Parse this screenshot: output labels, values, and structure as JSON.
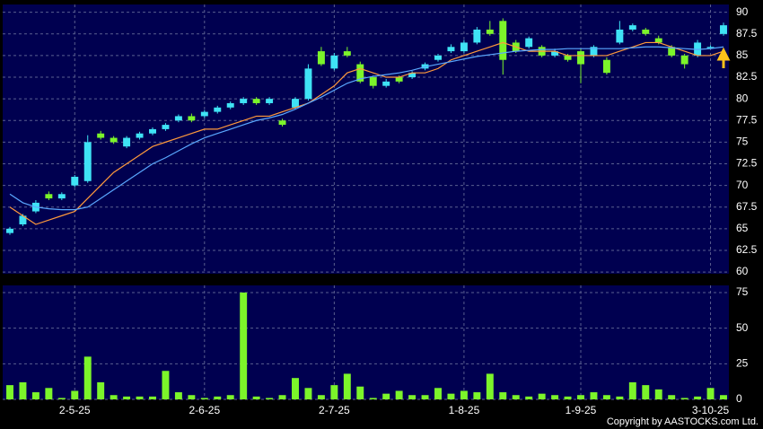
{
  "chart_data": [
    {
      "type": "candlestick",
      "categories": [
        null,
        null,
        null,
        null,
        null,
        "2-5-25",
        null,
        null,
        null,
        null,
        null,
        null,
        null,
        null,
        null,
        "2-6-25",
        null,
        null,
        null,
        null,
        null,
        null,
        null,
        null,
        null,
        "2-7-25",
        null,
        null,
        null,
        null,
        null,
        null,
        null,
        null,
        null,
        "1-8-25",
        null,
        null,
        null,
        null,
        null,
        null,
        null,
        null,
        "1-9-25",
        null,
        null,
        null,
        null,
        null,
        null,
        null,
        null,
        null,
        "3-10-25",
        null
      ],
      "open": [
        64.5,
        65.5,
        67,
        69,
        68.5,
        70,
        70.5,
        76,
        75.5,
        74.5,
        75.5,
        76,
        76.5,
        77.5,
        78,
        78,
        78.5,
        79,
        79.5,
        80,
        79.5,
        77.5,
        79,
        80,
        85.5,
        83.5,
        85.5,
        84,
        82.5,
        81.5,
        82.5,
        82.5,
        83.5,
        84.5,
        85.5,
        85.5,
        86.5,
        88,
        89,
        86.5,
        86,
        86,
        85,
        85,
        85.5,
        85,
        84.5,
        86.5,
        88,
        88,
        87,
        86,
        85,
        85,
        86,
        87.5
      ],
      "high": [
        65.2,
        66.7,
        68.3,
        69.3,
        69.2,
        71.2,
        75.8,
        76.3,
        75.7,
        75.7,
        76.2,
        76.7,
        77.2,
        78.2,
        78.3,
        78.7,
        79.2,
        79.7,
        80.2,
        80.2,
        80.2,
        77.7,
        80.2,
        84,
        86,
        85.3,
        86,
        84.3,
        82.7,
        82.3,
        82.7,
        83.2,
        84.2,
        85.2,
        86.3,
        86.8,
        88.3,
        89,
        89.3,
        86.8,
        87.2,
        86.2,
        85.8,
        85.2,
        85.8,
        86.2,
        84.8,
        89,
        88.7,
        88.2,
        87.3,
        86.2,
        85.2,
        86.8,
        86.2,
        88.8
      ],
      "low": [
        64.3,
        65.3,
        66.8,
        68.3,
        68.3,
        69.8,
        70.3,
        75.3,
        74.8,
        74.3,
        75.3,
        75.8,
        76.3,
        77.3,
        77.3,
        77.8,
        78.3,
        78.8,
        79.3,
        79.3,
        79.3,
        76.8,
        78.8,
        79.8,
        83.8,
        83.3,
        84.8,
        81.8,
        81.2,
        81.3,
        81.8,
        82.3,
        83.3,
        84.3,
        85.3,
        85.3,
        86.3,
        87.3,
        82.8,
        85.3,
        85.8,
        84.8,
        84.8,
        84.3,
        81.8,
        84.8,
        82.8,
        86.3,
        87.8,
        87.3,
        86.3,
        84.8,
        83.5,
        84.8,
        85.8,
        87.3
      ],
      "close": [
        65,
        66.5,
        68,
        68.5,
        69,
        71,
        75,
        75.5,
        75,
        75.5,
        76,
        76.5,
        77,
        78,
        77.5,
        78.5,
        79,
        79.5,
        80,
        79.5,
        80,
        77,
        80,
        83.5,
        84,
        85,
        85,
        82,
        81.5,
        82,
        82,
        83,
        84,
        85,
        86,
        86.5,
        88,
        87.5,
        84.5,
        85.5,
        87,
        85,
        85.5,
        84.5,
        84,
        86,
        83,
        88,
        88.5,
        87.5,
        86.5,
        85,
        84,
        86.5,
        86,
        88.5
      ],
      "up_color": "#3fe3f5",
      "down_color": "#7cf52a",
      "lines": [
        {
          "color": "#ff9a3c",
          "values": [
            67.5,
            66.5,
            65.5,
            66,
            66.5,
            67,
            68.5,
            70,
            71.5,
            72.5,
            73.5,
            74.5,
            75,
            75.5,
            76,
            76.5,
            76.5,
            77,
            77.5,
            78,
            78,
            78.5,
            79,
            79.5,
            80.5,
            81.5,
            83,
            83.5,
            83,
            82.5,
            82.5,
            83,
            83,
            83.5,
            84.5,
            85,
            85.5,
            86,
            86.5,
            86,
            85.5,
            85.5,
            85.5,
            85,
            85,
            85,
            85,
            85.5,
            86,
            86.5,
            86.5,
            86,
            85.5,
            85,
            85,
            85.5
          ]
        },
        {
          "color": "#5aa8ff",
          "values": [
            69,
            68,
            67.5,
            67.3,
            67.2,
            67.2,
            67.5,
            68.5,
            69.5,
            70.5,
            71.5,
            72.5,
            73.2,
            74,
            74.8,
            75.5,
            76,
            76.5,
            77,
            77.5,
            77.8,
            78.2,
            78.8,
            79.5,
            80.2,
            81,
            81.8,
            82.3,
            82.6,
            82.8,
            83,
            83.3,
            83.7,
            84,
            84.3,
            84.6,
            84.9,
            85.1,
            85.3,
            85.5,
            85.6,
            85.7,
            85.7,
            85.8,
            85.8,
            85.8,
            85.8,
            85.8,
            85.9,
            86,
            86,
            85.9,
            85.8,
            85.7,
            85.8,
            86
          ]
        }
      ],
      "ylim": [
        59.8,
        90.9
      ],
      "yticks": [
        60,
        62.5,
        65,
        67.5,
        70,
        72.5,
        75,
        77.5,
        80,
        82.5,
        85,
        87.5,
        90
      ],
      "grid": true
    },
    {
      "type": "bar",
      "values": [
        10,
        12,
        5,
        8,
        1,
        6,
        30,
        12,
        3,
        2,
        2,
        2,
        20,
        5,
        3,
        1,
        2,
        3,
        75,
        2,
        1,
        3,
        15,
        8,
        3,
        10,
        18,
        9,
        1,
        4,
        6,
        3,
        3,
        8,
        4,
        6,
        5,
        18,
        5,
        3,
        2,
        4,
        3,
        2,
        3,
        5,
        3,
        2,
        12,
        10,
        7,
        3,
        1,
        2,
        8,
        3
      ],
      "color": "#7cf52a",
      "ylim": [
        0,
        80
      ],
      "yticks": [
        0,
        25,
        50,
        75
      ],
      "grid": true
    }
  ],
  "copyright": "Copyright by AASTOCKS.com Ltd."
}
